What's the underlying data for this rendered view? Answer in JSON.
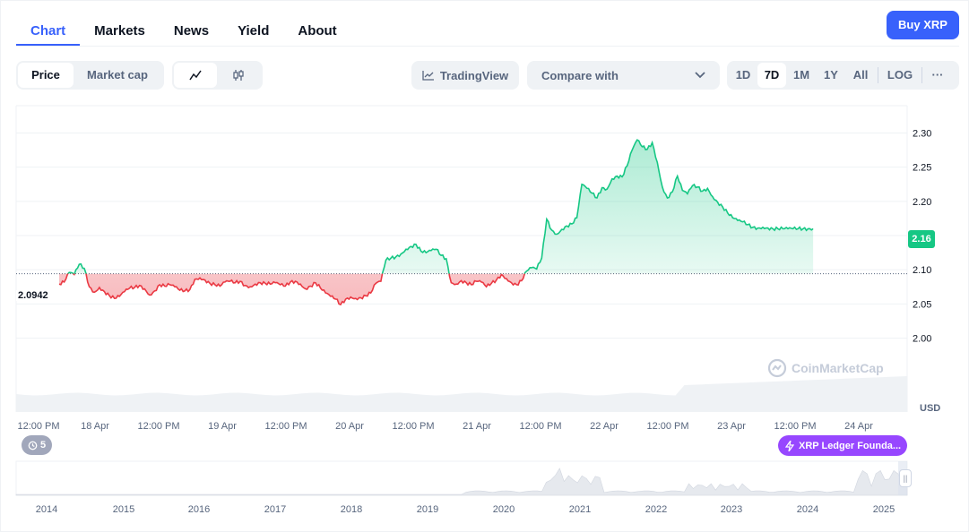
{
  "tabs": [
    {
      "label": "Chart",
      "active": true
    },
    {
      "label": "Markets",
      "active": false
    },
    {
      "label": "News",
      "active": false
    },
    {
      "label": "Yield",
      "active": false
    },
    {
      "label": "About",
      "active": false
    }
  ],
  "buy_button": "Buy XRP",
  "controls": {
    "price": "Price",
    "market_cap": "Market cap",
    "tradingview": "TradingView",
    "compare_placeholder": "Compare with",
    "ranges": [
      "1D",
      "7D",
      "1M",
      "1Y",
      "All"
    ],
    "selected_range": "7D",
    "log": "LOG",
    "more": "···"
  },
  "chart_data": {
    "type": "line",
    "y_ticks": [
      "2.30",
      "2.25",
      "2.20",
      "2.15",
      "2.10",
      "2.05",
      "2.00"
    ],
    "y_tick_values": [
      2.3,
      2.25,
      2.2,
      2.15,
      2.1,
      2.05,
      2.0
    ],
    "ylim": [
      1.96,
      2.34
    ],
    "x_ticks": [
      "12:00 PM",
      "18 Apr",
      "12:00 PM",
      "19 Apr",
      "12:00 PM",
      "20 Apr",
      "12:00 PM",
      "21 Apr",
      "12:00 PM",
      "22 Apr",
      "12:00 PM",
      "23 Apr",
      "12:00 PM",
      "24 Apr"
    ],
    "reference_price": 2.0942,
    "reference_label": "2.0942",
    "current_price": "2.16",
    "currency": "USD",
    "grid": true,
    "colors": {
      "up": "#16c784",
      "down": "#ea3943"
    },
    "series": [
      {
        "x_hours": [
          0,
          1,
          2,
          3,
          4,
          5,
          6,
          7,
          8,
          9,
          10,
          11,
          12,
          13,
          14,
          15,
          16,
          17,
          18,
          19,
          20,
          21,
          22,
          23,
          24,
          25,
          26,
          27,
          28,
          29,
          30,
          31,
          32,
          33,
          34,
          35,
          36,
          37,
          38,
          39,
          40,
          41,
          42,
          43,
          44,
          45,
          46,
          47,
          48,
          49,
          50,
          51,
          52,
          53,
          54,
          55,
          56,
          57,
          58,
          59,
          60,
          61,
          62,
          63,
          64,
          65,
          66,
          67,
          68,
          69,
          70,
          71,
          72,
          73,
          74,
          75,
          76,
          77,
          78,
          79,
          80,
          81,
          82,
          83,
          84,
          85,
          86,
          87,
          88,
          89,
          90,
          91,
          92,
          93,
          94,
          95,
          96,
          97,
          98,
          99,
          100,
          101,
          102,
          103,
          104,
          105,
          106,
          107,
          108,
          109,
          110,
          111,
          112,
          113,
          114,
          115,
          116,
          117,
          118,
          119,
          120,
          121,
          122,
          123,
          124,
          125,
          126,
          127,
          128,
          129,
          130,
          131,
          132,
          133,
          134,
          135,
          136,
          137,
          138,
          139,
          140,
          141,
          142,
          143,
          144,
          145,
          146,
          147,
          148,
          149,
          150,
          151,
          152,
          153,
          154,
          155,
          156,
          157,
          158,
          159,
          160,
          161,
          162,
          163,
          164,
          165,
          166,
          167,
          168
        ],
        "values": [
          2.079,
          2.082,
          2.096,
          2.093,
          2.108,
          2.102,
          2.075,
          2.067,
          2.074,
          2.068,
          2.062,
          2.058,
          2.061,
          2.068,
          2.073,
          2.074,
          2.077,
          2.072,
          2.063,
          2.069,
          2.078,
          2.076,
          2.078,
          2.075,
          2.07,
          2.069,
          2.071,
          2.086,
          2.088,
          2.085,
          2.08,
          2.078,
          2.076,
          2.082,
          2.083,
          2.081,
          2.083,
          2.077,
          2.075,
          2.079,
          2.081,
          2.08,
          2.079,
          2.081,
          2.078,
          2.076,
          2.082,
          2.083,
          2.079,
          2.072,
          2.076,
          2.081,
          2.073,
          2.066,
          2.061,
          2.057,
          2.049,
          2.057,
          2.06,
          2.058,
          2.059,
          2.062,
          2.066,
          2.08,
          2.083,
          2.114,
          2.117,
          2.119,
          2.123,
          2.13,
          2.134,
          2.137,
          2.127,
          2.125,
          2.128,
          2.13,
          2.121,
          2.116,
          2.081,
          2.079,
          2.084,
          2.081,
          2.078,
          2.083,
          2.082,
          2.075,
          2.08,
          2.085,
          2.093,
          2.087,
          2.081,
          2.078,
          2.084,
          2.098,
          2.103,
          2.101,
          2.117,
          2.174,
          2.158,
          2.152,
          2.159,
          2.164,
          2.167,
          2.176,
          2.225,
          2.219,
          2.212,
          2.205,
          2.22,
          2.218,
          2.233,
          2.237,
          2.236,
          2.252,
          2.275,
          2.29,
          2.28,
          2.276,
          2.286,
          2.257,
          2.221,
          2.205,
          2.214,
          2.237,
          2.216,
          2.211,
          2.223,
          2.221,
          2.215,
          2.219,
          2.207,
          2.199,
          2.192,
          2.183,
          2.176,
          2.172,
          2.17,
          2.166,
          2.162,
          2.161,
          2.162,
          2.161,
          2.16,
          2.16,
          2.16,
          2.16,
          2.16,
          2.16,
          2.16,
          2.16,
          2.16,
          2.16,
          2.16,
          2.16,
          2.16,
          2.16,
          2.16,
          2.16,
          2.16,
          2.16,
          2.16,
          2.16,
          2.16,
          2.16,
          2.16,
          2.16,
          2.16,
          2.16,
          2.16
        ]
      }
    ],
    "navigator_years": [
      "2014",
      "2015",
      "2016",
      "2017",
      "2018",
      "2019",
      "2020",
      "2021",
      "2022",
      "2023",
      "2024",
      "2025"
    ]
  },
  "events_count": "5",
  "event_tag": "XRP Ledger Founda...",
  "watermark": "CoinMarketCap",
  "nav_handle": "||"
}
